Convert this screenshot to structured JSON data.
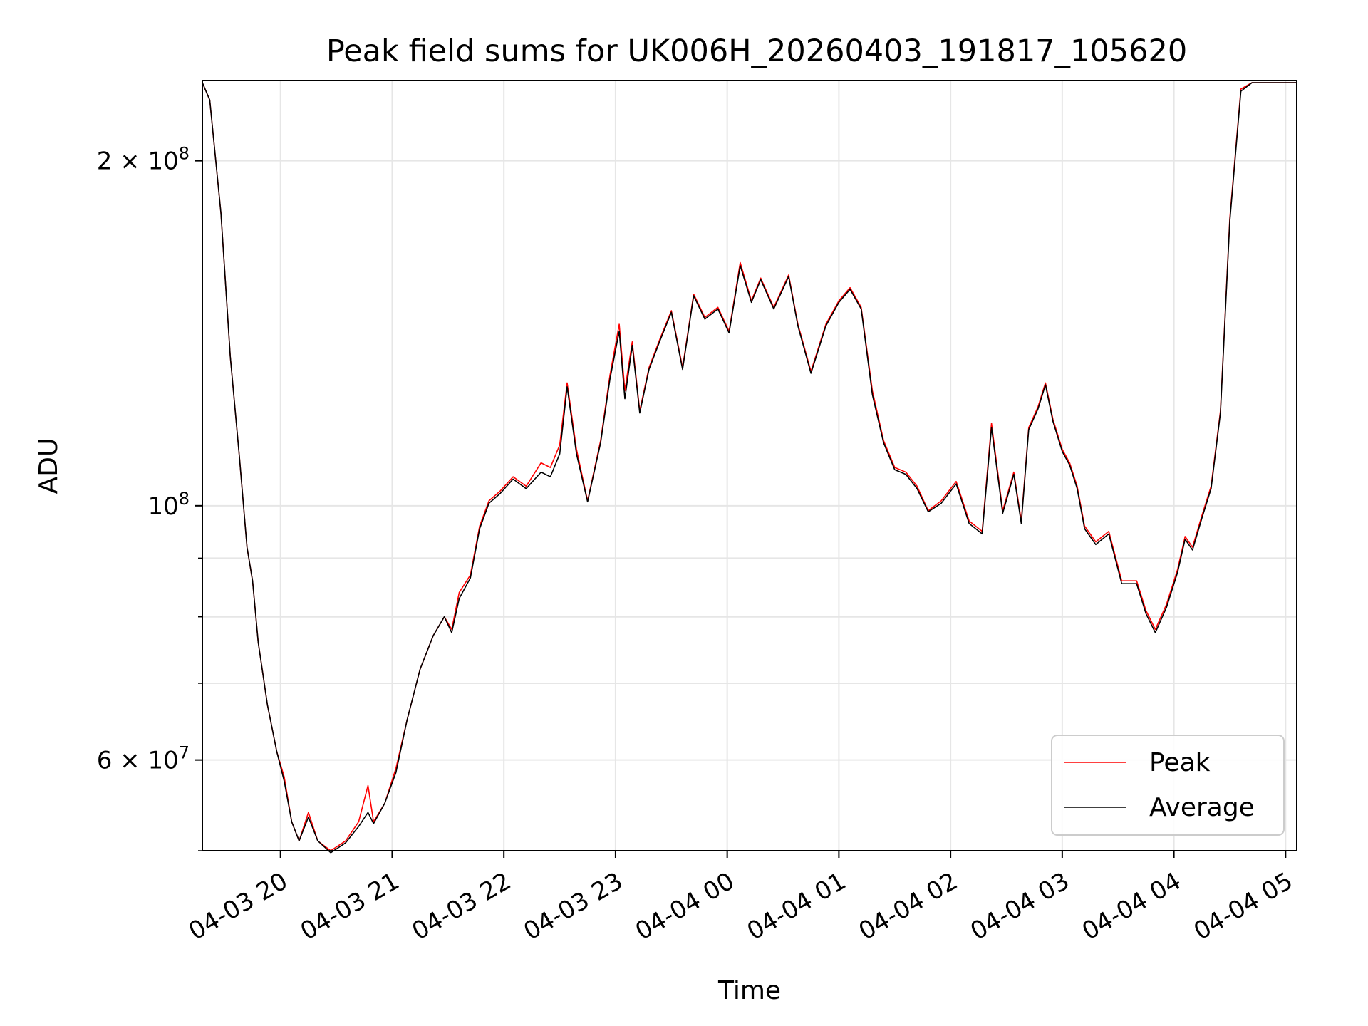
{
  "chart_data": {
    "type": "line",
    "title": "Peak field sums for UK006H_20260403_191817_105620",
    "xlabel": "Time",
    "ylabel": "ADU",
    "yscale": "log",
    "grid": true,
    "legend_position": "lower-right",
    "xlim": [
      "2026-04-03 19:18",
      "2026-04-04 05:06"
    ],
    "ylim": [
      50000000,
      235000000
    ],
    "x_ticks": [
      {
        "value": "2026-04-03 20:00",
        "label": "04-03 20"
      },
      {
        "value": "2026-04-03 21:00",
        "label": "04-03 21"
      },
      {
        "value": "2026-04-03 22:00",
        "label": "04-03 22"
      },
      {
        "value": "2026-04-03 23:00",
        "label": "04-03 23"
      },
      {
        "value": "2026-04-04 00:00",
        "label": "04-04 00"
      },
      {
        "value": "2026-04-04 01:00",
        "label": "04-04 01"
      },
      {
        "value": "2026-04-04 02:00",
        "label": "04-04 02"
      },
      {
        "value": "2026-04-04 03:00",
        "label": "04-04 03"
      },
      {
        "value": "2026-04-04 04:00",
        "label": "04-04 04"
      },
      {
        "value": "2026-04-04 05:00",
        "label": "04-04 05"
      }
    ],
    "y_major_ticks": [
      {
        "value": 60000000,
        "mantissa": "6",
        "exponent": "7"
      },
      {
        "value": 100000000,
        "mantissa": "",
        "exponent": "8"
      },
      {
        "value": 200000000,
        "mantissa": "2",
        "exponent": "8"
      }
    ],
    "y_minor_ticks": [
      50000000,
      70000000,
      80000000,
      90000000
    ],
    "series": [
      {
        "name": "Peak",
        "color": "#ff0000",
        "x": [
          "2026-04-03 19:18",
          "2026-04-03 19:22",
          "2026-04-03 19:28",
          "2026-04-03 19:33",
          "2026-04-03 19:38",
          "2026-04-03 19:42",
          "2026-04-03 19:45",
          "2026-04-03 19:48",
          "2026-04-03 19:53",
          "2026-04-03 19:58",
          "2026-04-03 20:02",
          "2026-04-03 20:06",
          "2026-04-03 20:10",
          "2026-04-03 20:15",
          "2026-04-03 20:20",
          "2026-04-03 20:27",
          "2026-04-03 20:35",
          "2026-04-03 20:42",
          "2026-04-03 20:47",
          "2026-04-03 20:50",
          "2026-04-03 20:56",
          "2026-04-03 21:02",
          "2026-04-03 21:08",
          "2026-04-03 21:15",
          "2026-04-03 21:22",
          "2026-04-03 21:28",
          "2026-04-03 21:32",
          "2026-04-03 21:36",
          "2026-04-03 21:42",
          "2026-04-03 21:47",
          "2026-04-03 21:52",
          "2026-04-03 21:58",
          "2026-04-03 22:05",
          "2026-04-03 22:12",
          "2026-04-03 22:20",
          "2026-04-03 22:25",
          "2026-04-03 22:30",
          "2026-04-03 22:34",
          "2026-04-03 22:39",
          "2026-04-03 22:45",
          "2026-04-03 22:52",
          "2026-04-03 22:57",
          "2026-04-03 23:02",
          "2026-04-03 23:05",
          "2026-04-03 23:09",
          "2026-04-03 23:13",
          "2026-04-03 23:18",
          "2026-04-03 23:24",
          "2026-04-03 23:30",
          "2026-04-03 23:36",
          "2026-04-03 23:42",
          "2026-04-03 23:48",
          "2026-04-03 23:55",
          "2026-04-04 00:01",
          "2026-04-04 00:07",
          "2026-04-04 00:13",
          "2026-04-04 00:18",
          "2026-04-04 00:25",
          "2026-04-04 00:33",
          "2026-04-04 00:38",
          "2026-04-04 00:45",
          "2026-04-04 00:53",
          "2026-04-04 01:00",
          "2026-04-04 01:06",
          "2026-04-04 01:12",
          "2026-04-04 01:18",
          "2026-04-04 01:24",
          "2026-04-04 01:30",
          "2026-04-04 01:36",
          "2026-04-04 01:42",
          "2026-04-04 01:48",
          "2026-04-04 01:55",
          "2026-04-04 02:03",
          "2026-04-04 02:10",
          "2026-04-04 02:17",
          "2026-04-04 02:22",
          "2026-04-04 02:28",
          "2026-04-04 02:34",
          "2026-04-04 02:38",
          "2026-04-04 02:42",
          "2026-04-04 02:47",
          "2026-04-04 02:51",
          "2026-04-04 02:55",
          "2026-04-04 03:00",
          "2026-04-04 03:04",
          "2026-04-04 03:08",
          "2026-04-04 03:12",
          "2026-04-04 03:18",
          "2026-04-04 03:25",
          "2026-04-04 03:32",
          "2026-04-04 03:40",
          "2026-04-04 03:45",
          "2026-04-04 03:50",
          "2026-04-04 03:56",
          "2026-04-04 04:02",
          "2026-04-04 04:06",
          "2026-04-04 04:10",
          "2026-04-04 04:15",
          "2026-04-04 04:20",
          "2026-04-04 04:25",
          "2026-04-04 04:30",
          "2026-04-04 04:36",
          "2026-04-04 04:42",
          "2026-04-04 04:48",
          "2026-04-04 04:54",
          "2026-04-04 05:00",
          "2026-04-04 05:06"
        ],
        "y": [
          234000000,
          226000000,
          180000000,
          135000000,
          110000000,
          92000000,
          86000000,
          76000000,
          67000000,
          61000000,
          58000000,
          53000000,
          51000000,
          54000000,
          51000000,
          50000000,
          51000000,
          53000000,
          57000000,
          53000000,
          55000000,
          59000000,
          65000000,
          72000000,
          77000000,
          80000000,
          78000000,
          84000000,
          87000000,
          96000000,
          101000000,
          103000000,
          106000000,
          104000000,
          109000000,
          108000000,
          113000000,
          128000000,
          112000000,
          101000000,
          114000000,
          130000000,
          144000000,
          126000000,
          139000000,
          121000000,
          132000000,
          140000000,
          148000000,
          132000000,
          153000000,
          146000000,
          149000000,
          142000000,
          163000000,
          151000000,
          158000000,
          149000000,
          159000000,
          144000000,
          131000000,
          144000000,
          151000000,
          155000000,
          149000000,
          126000000,
          114000000,
          108000000,
          107000000,
          104000000,
          99000000,
          101000000,
          105000000,
          97000000,
          95000000,
          118000000,
          99000000,
          107000000,
          97000000,
          117000000,
          122000000,
          128000000,
          119000000,
          112000000,
          109000000,
          104000000,
          96000000,
          93000000,
          95000000,
          86000000,
          86000000,
          81000000,
          78000000,
          82000000,
          88000000,
          94000000,
          92000000,
          98000000,
          104000000,
          121000000,
          178000000,
          231000000,
          234000000,
          234000000,
          234000000,
          234000000,
          234000000
        ]
      },
      {
        "name": "Average",
        "color": "#000000",
        "x": [
          "2026-04-03 19:18",
          "2026-04-03 19:22",
          "2026-04-03 19:28",
          "2026-04-03 19:33",
          "2026-04-03 19:38",
          "2026-04-03 19:42",
          "2026-04-03 19:45",
          "2026-04-03 19:48",
          "2026-04-03 19:53",
          "2026-04-03 19:58",
          "2026-04-03 20:02",
          "2026-04-03 20:06",
          "2026-04-03 20:10",
          "2026-04-03 20:15",
          "2026-04-03 20:20",
          "2026-04-03 20:27",
          "2026-04-03 20:35",
          "2026-04-03 20:42",
          "2026-04-03 20:47",
          "2026-04-03 20:50",
          "2026-04-03 20:56",
          "2026-04-03 21:02",
          "2026-04-03 21:08",
          "2026-04-03 21:15",
          "2026-04-03 21:22",
          "2026-04-03 21:28",
          "2026-04-03 21:32",
          "2026-04-03 21:36",
          "2026-04-03 21:42",
          "2026-04-03 21:47",
          "2026-04-03 21:52",
          "2026-04-03 21:58",
          "2026-04-03 22:05",
          "2026-04-03 22:12",
          "2026-04-03 22:20",
          "2026-04-03 22:25",
          "2026-04-03 22:30",
          "2026-04-03 22:34",
          "2026-04-03 22:39",
          "2026-04-03 22:45",
          "2026-04-03 22:52",
          "2026-04-03 22:57",
          "2026-04-03 23:02",
          "2026-04-03 23:05",
          "2026-04-03 23:09",
          "2026-04-03 23:13",
          "2026-04-03 23:18",
          "2026-04-03 23:24",
          "2026-04-03 23:30",
          "2026-04-03 23:36",
          "2026-04-03 23:42",
          "2026-04-03 23:48",
          "2026-04-03 23:55",
          "2026-04-04 00:01",
          "2026-04-04 00:07",
          "2026-04-04 00:13",
          "2026-04-04 00:18",
          "2026-04-04 00:25",
          "2026-04-04 00:33",
          "2026-04-04 00:38",
          "2026-04-04 00:45",
          "2026-04-04 00:53",
          "2026-04-04 01:00",
          "2026-04-04 01:06",
          "2026-04-04 01:12",
          "2026-04-04 01:18",
          "2026-04-04 01:24",
          "2026-04-04 01:30",
          "2026-04-04 01:36",
          "2026-04-04 01:42",
          "2026-04-04 01:48",
          "2026-04-04 01:55",
          "2026-04-04 02:03",
          "2026-04-04 02:10",
          "2026-04-04 02:17",
          "2026-04-04 02:22",
          "2026-04-04 02:28",
          "2026-04-04 02:34",
          "2026-04-04 02:38",
          "2026-04-04 02:42",
          "2026-04-04 02:47",
          "2026-04-04 02:51",
          "2026-04-04 02:55",
          "2026-04-04 03:00",
          "2026-04-04 03:04",
          "2026-04-04 03:08",
          "2026-04-04 03:12",
          "2026-04-04 03:18",
          "2026-04-04 03:25",
          "2026-04-04 03:32",
          "2026-04-04 03:40",
          "2026-04-04 03:45",
          "2026-04-04 03:50",
          "2026-04-04 03:56",
          "2026-04-04 04:02",
          "2026-04-04 04:06",
          "2026-04-04 04:10",
          "2026-04-04 04:15",
          "2026-04-04 04:20",
          "2026-04-04 04:25",
          "2026-04-04 04:30",
          "2026-04-04 04:36",
          "2026-04-04 04:42",
          "2026-04-04 04:48",
          "2026-04-04 04:54",
          "2026-04-04 05:00",
          "2026-04-04 05:06"
        ],
        "y": [
          234000000,
          226000000,
          180000000,
          135000000,
          110000000,
          92000000,
          86000000,
          76000000,
          67000000,
          61000000,
          57500000,
          53000000,
          51000000,
          53500000,
          51000000,
          49800000,
          50800000,
          52500000,
          54000000,
          52800000,
          55000000,
          58500000,
          65000000,
          72000000,
          77000000,
          80000000,
          77500000,
          83000000,
          86500000,
          95500000,
          100500000,
          102500000,
          105500000,
          103500000,
          107000000,
          106000000,
          111000000,
          127000000,
          111000000,
          100800000,
          113500000,
          129000000,
          142000000,
          124000000,
          138000000,
          120500000,
          131500000,
          139500000,
          147500000,
          131500000,
          152500000,
          145500000,
          148500000,
          141500000,
          162000000,
          150500000,
          157500000,
          148500000,
          158500000,
          143500000,
          130500000,
          143500000,
          150500000,
          154500000,
          148500000,
          125000000,
          113500000,
          107500000,
          106500000,
          103500000,
          98800000,
          100500000,
          104500000,
          96500000,
          94500000,
          117000000,
          98500000,
          106500000,
          96500000,
          116500000,
          121500000,
          127500000,
          118500000,
          111500000,
          108500000,
          103500000,
          95500000,
          92500000,
          94500000,
          85500000,
          85500000,
          80500000,
          77500000,
          81500000,
          87500000,
          93500000,
          91500000,
          97500000,
          103500000,
          120500000,
          177000000,
          230000000,
          234000000,
          234000000,
          234000000,
          234000000,
          234000000
        ]
      }
    ]
  }
}
